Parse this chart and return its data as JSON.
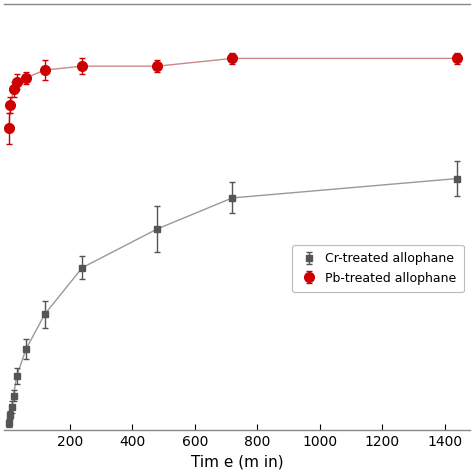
{
  "cr_x": [
    5,
    10,
    15,
    20,
    30,
    60,
    120,
    240,
    480,
    720,
    1440
  ],
  "cr_y": [
    2,
    4,
    6,
    9,
    14,
    21,
    30,
    42,
    52,
    60,
    65
  ],
  "cr_yerr": [
    1.0,
    1.0,
    1.5,
    1.5,
    2.0,
    2.5,
    3.5,
    3.0,
    6.0,
    4.0,
    4.5
  ],
  "pb_x": [
    5,
    10,
    20,
    30,
    60,
    120,
    240,
    480,
    720,
    1440
  ],
  "pb_y": [
    78,
    84,
    88,
    90,
    91,
    93,
    94,
    94,
    96,
    96
  ],
  "pb_yerr": [
    4.0,
    2.0,
    2.0,
    2.0,
    1.5,
    2.5,
    2.0,
    1.5,
    1.5,
    1.5
  ],
  "xlabel": "Tim e (m in)",
  "cr_label": "Cr-treated allophane",
  "pb_label": "Pb-treated allophane",
  "cr_color": "#555555",
  "pb_color": "#cc0000",
  "cr_line_color": "#999999",
  "pb_line_color": "#cc8888",
  "xlim": [
    -10,
    1480
  ],
  "ylim": [
    0,
    110
  ],
  "xticks": [
    200,
    400,
    600,
    800,
    1000,
    1200,
    1400
  ],
  "figsize": [
    4.74,
    4.74
  ],
  "dpi": 100
}
